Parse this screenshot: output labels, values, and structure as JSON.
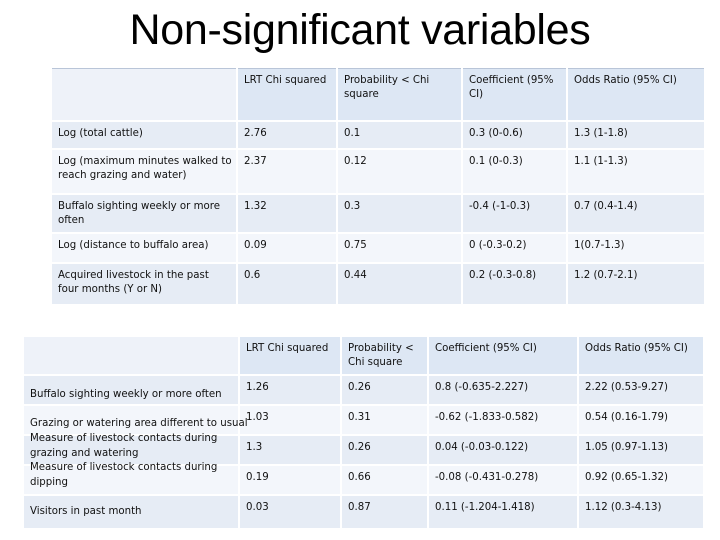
{
  "title": "Non-significant variables",
  "table1": {
    "headers": [
      "",
      "LRT Chi squared",
      "Probability < Chi square",
      "Coefficient (95% CI)",
      "Odds Ratio (95% CI)"
    ],
    "rows": [
      [
        "Log (total cattle)",
        "2.76",
        "0.1",
        "0.3 (0-0.6)",
        "1.3 (1-1.8)"
      ],
      [
        "Log (maximum minutes walked to reach grazing and water)",
        "2.37",
        "0.12",
        "0.1 (0-0.3)",
        "1.1 (1-1.3)"
      ],
      [
        "Buffalo sighting weekly or more often",
        "1.32",
        "0.3",
        "-0.4 (-1-0.3)",
        "0.7 (0.4-1.4)"
      ],
      [
        "Log (distance to buffalo area)",
        "0.09",
        "0.75",
        "0 (-0.3-0.2)",
        "1(0.7-1.3)"
      ],
      [
        "Acquired livestock in the past four months (Y or N)",
        "0.6",
        "0.44",
        "0.2 (-0.3-0.8)",
        "1.2 (0.7-2.1)"
      ]
    ]
  },
  "table2": {
    "headers": [
      "",
      "LRT Chi squared",
      "Probability < Chi square",
      "Coefficient (95% CI)",
      "Odds Ratio (95% CI)"
    ],
    "row_labels": [
      "Buffalo sighting weekly or more often",
      "Grazing or watering area different to usual",
      "Measure of livestock contacts during grazing and watering",
      "Measure of livestock contacts during dipping",
      "Visitors in past month"
    ],
    "rows": [
      [
        "1.26",
        "0.26",
        "0.8 (-0.635-2.227)",
        "2.22 (0.53-9.27)"
      ],
      [
        "1.03",
        "0.31",
        "-0.62 (-1.833-0.582)",
        "0.54 (0.16-1.79)"
      ],
      [
        "1.3",
        "0.26",
        "0.04 (-0.03-0.122)",
        "1.05 (0.97-1.13)"
      ],
      [
        "0.19",
        "0.66",
        "-0.08 (-0.431-0.278)",
        "0.92 (0.65-1.32)"
      ],
      [
        "0.03",
        "0.87",
        "0.11 (-1.204-1.418)",
        "1.12 (0.3-4.13)"
      ]
    ]
  }
}
